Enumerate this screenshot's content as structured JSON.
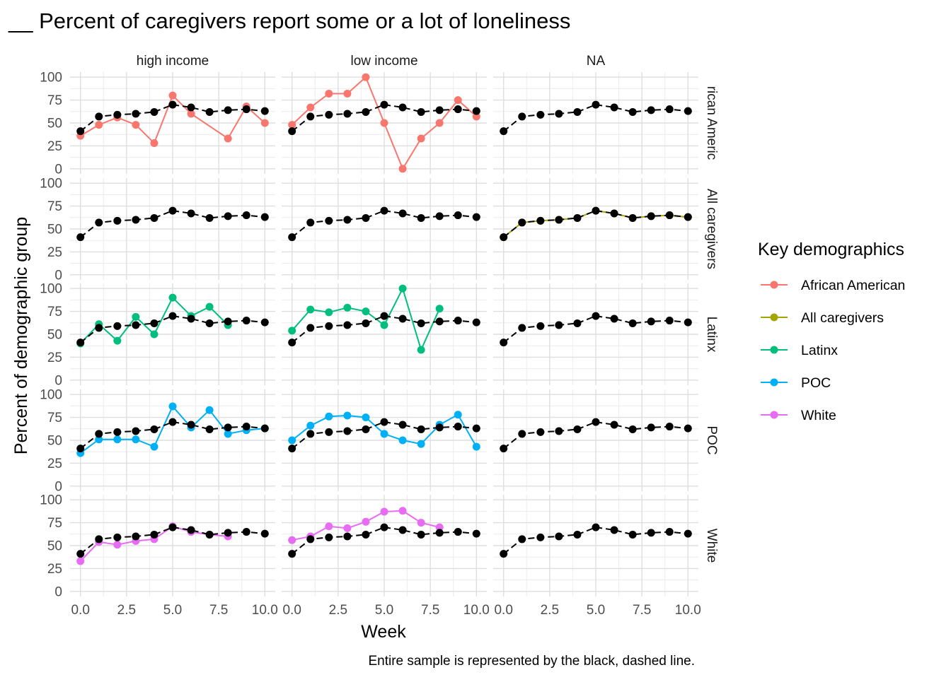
{
  "chart_data": {
    "type": "line",
    "title": "__ Percent of caregivers report some or a lot of loneliness",
    "xlabel": "Week",
    "ylabel": "Percent of demographic group",
    "caption": "Entire sample is represented by the black, dashed line.",
    "xlim": [
      0,
      10
    ],
    "ylim": [
      0,
      100
    ],
    "x_ticks": [
      0,
      2.5,
      5,
      7.5,
      10
    ],
    "x_tick_labels": [
      "0.0",
      "2.5",
      "5.0",
      "7.5",
      "10.0"
    ],
    "y_ticks": [
      0,
      25,
      50,
      75,
      100
    ],
    "y_tick_labels": [
      "0",
      "25",
      "50",
      "75",
      "100"
    ],
    "grid": true,
    "legend_position": "right",
    "legend_title": "Key demographics",
    "legend": [
      {
        "name": "African American",
        "color": "#F8766D"
      },
      {
        "name": "All caregivers",
        "color": "#A3A500"
      },
      {
        "name": "Latinx",
        "color": "#00BF7D"
      },
      {
        "name": "POC",
        "color": "#00B0F6"
      },
      {
        "name": "White",
        "color": "#E76BF3"
      }
    ],
    "columns": [
      "high income",
      "low income",
      "NA"
    ],
    "rows": [
      "rican Americ",
      "All caregivers",
      "Latinx",
      "POC",
      "White"
    ],
    "reference_series": {
      "style": "black dashed",
      "x": [
        0,
        1,
        2,
        3,
        4,
        5,
        6,
        7,
        8,
        9,
        10
      ],
      "y": [
        41,
        57,
        59,
        60,
        62,
        70,
        67,
        62,
        64,
        65,
        63
      ]
    },
    "panels": [
      {
        "row": 0,
        "col": 0,
        "series": "African American",
        "x": [
          0,
          1,
          2,
          3,
          4,
          5,
          6,
          8,
          9,
          10
        ],
        "y": [
          36,
          48,
          56,
          48,
          28,
          80,
          60,
          33,
          68,
          50
        ]
      },
      {
        "row": 0,
        "col": 1,
        "series": "African American",
        "x": [
          0,
          1,
          2,
          3,
          4,
          5,
          6,
          7,
          8,
          9,
          10
        ],
        "y": [
          48,
          67,
          82,
          82,
          100,
          50,
          0,
          33,
          50,
          75,
          57
        ]
      },
      {
        "row": 1,
        "col": 2,
        "series": "All caregivers",
        "x": [
          0,
          1,
          2,
          3,
          4,
          5,
          6,
          7,
          8,
          9,
          10
        ],
        "y": [
          41,
          57,
          59,
          60,
          62,
          70,
          67,
          62,
          64,
          65,
          63
        ]
      },
      {
        "row": 2,
        "col": 0,
        "series": "Latinx",
        "x": [
          0,
          1,
          2,
          3,
          4,
          5,
          6,
          7,
          8
        ],
        "y": [
          40,
          61,
          43,
          69,
          50,
          90,
          70,
          80,
          60
        ]
      },
      {
        "row": 2,
        "col": 1,
        "series": "Latinx",
        "x": [
          0,
          1,
          2,
          3,
          4,
          5,
          6,
          7,
          8
        ],
        "y": [
          54,
          77,
          74,
          79,
          75,
          60,
          100,
          33,
          78
        ]
      },
      {
        "row": 3,
        "col": 0,
        "series": "POC",
        "x": [
          0,
          1,
          2,
          3,
          4,
          5,
          6,
          7,
          8,
          9,
          10
        ],
        "y": [
          36,
          51,
          51,
          51,
          43,
          87,
          64,
          83,
          57,
          61,
          63
        ]
      },
      {
        "row": 3,
        "col": 1,
        "series": "POC",
        "x": [
          0,
          1,
          2,
          3,
          4,
          5,
          6,
          7,
          8,
          9,
          10
        ],
        "y": [
          50,
          66,
          76,
          77,
          75,
          57,
          50,
          46,
          67,
          78,
          43
        ]
      },
      {
        "row": 4,
        "col": 0,
        "series": "White",
        "x": [
          0,
          1,
          2,
          3,
          4,
          5,
          6,
          7,
          8
        ],
        "y": [
          33,
          54,
          51,
          55,
          57,
          71,
          65,
          62,
          60
        ]
      },
      {
        "row": 4,
        "col": 1,
        "series": "White",
        "x": [
          0,
          1,
          2,
          3,
          4,
          5,
          6,
          7,
          8
        ],
        "y": [
          56,
          60,
          71,
          69,
          76,
          87,
          88,
          75,
          70
        ]
      }
    ]
  }
}
